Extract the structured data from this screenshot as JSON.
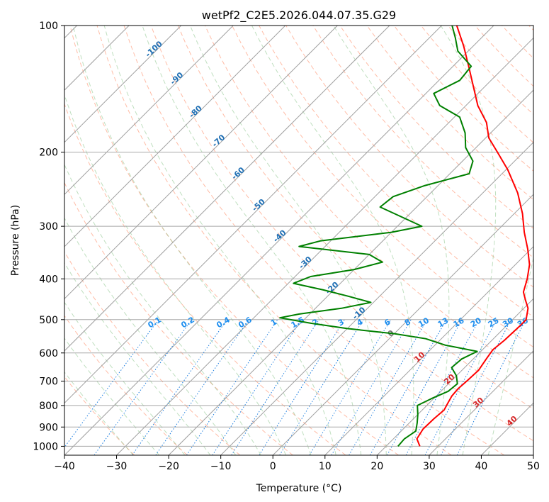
{
  "chart_data": {
    "type": "line",
    "title": "wetPf2_C2E5.2026.044.07.35.G29",
    "xlabel": "Temperature (°C)",
    "ylabel": "Pressure (hPa)",
    "xlim": [
      -40,
      50
    ],
    "ylim": [
      1050,
      100
    ],
    "y_scale": "log",
    "x_ticks": [
      -40,
      -30,
      -20,
      -10,
      0,
      10,
      20,
      30,
      40,
      50
    ],
    "x_tick_labels": [
      "−40",
      "−30",
      "−20",
      "−10",
      "0",
      "10",
      "20",
      "30",
      "40",
      "50"
    ],
    "y_ticks": [
      100,
      200,
      300,
      400,
      500,
      600,
      700,
      800,
      900,
      1000
    ],
    "y_tick_labels": [
      "100",
      "200",
      "300",
      "400",
      "500",
      "600",
      "700",
      "800",
      "900",
      "1000"
    ],
    "isotherm_labels": [
      {
        "t": -100,
        "text": "-100"
      },
      {
        "t": -90,
        "text": "-90"
      },
      {
        "t": -80,
        "text": "-80"
      },
      {
        "t": -70,
        "text": "-70"
      },
      {
        "t": -60,
        "text": "-60"
      },
      {
        "t": -50,
        "text": "-50"
      },
      {
        "t": -40,
        "text": "-40"
      },
      {
        "t": -30,
        "text": "-30"
      },
      {
        "t": -20,
        "text": "-20"
      },
      {
        "t": -10,
        "text": "-10"
      },
      {
        "t": 0,
        "text": "0"
      },
      {
        "t": 10,
        "text": "10"
      },
      {
        "t": 20,
        "text": "20"
      },
      {
        "t": 30,
        "text": "30"
      },
      {
        "t": 40,
        "text": "40"
      }
    ],
    "mixing_ratio_labels": [
      "0.1",
      "0.2",
      "0.4",
      "0.6",
      "1",
      "1.5",
      "2",
      "3",
      "4",
      "6",
      "8",
      "10",
      "13",
      "16",
      "20",
      "25",
      "30",
      "36"
    ],
    "series": [
      {
        "name": "Temperature",
        "color": "#ff0000",
        "points": [
          {
            "p": 1000,
            "t": 26.5
          },
          {
            "p": 960,
            "t": 24.5
          },
          {
            "p": 910,
            "t": 23.8
          },
          {
            "p": 860,
            "t": 23.9
          },
          {
            "p": 820,
            "t": 24.2
          },
          {
            "p": 790,
            "t": 23.6
          },
          {
            "p": 760,
            "t": 23.0
          },
          {
            "p": 730,
            "t": 22.8
          },
          {
            "p": 700,
            "t": 23.0
          },
          {
            "p": 660,
            "t": 23.2
          },
          {
            "p": 620,
            "t": 22.5
          },
          {
            "p": 590,
            "t": 22.0
          },
          {
            "p": 560,
            "t": 22.4
          },
          {
            "p": 540,
            "t": 22.5
          },
          {
            "p": 520,
            "t": 22.6
          },
          {
            "p": 500,
            "t": 22.6
          },
          {
            "p": 470,
            "t": 20.8
          },
          {
            "p": 450,
            "t": 18.8
          },
          {
            "p": 430,
            "t": 16.8
          },
          {
            "p": 400,
            "t": 15.0
          },
          {
            "p": 370,
            "t": 12.7
          },
          {
            "p": 340,
            "t": 9.4
          },
          {
            "p": 310,
            "t": 5.5
          },
          {
            "p": 280,
            "t": 1.6
          },
          {
            "p": 250,
            "t": -3.3
          },
          {
            "p": 220,
            "t": -9.7
          },
          {
            "p": 200,
            "t": -15.0
          },
          {
            "p": 185,
            "t": -19.4
          },
          {
            "p": 170,
            "t": -22.8
          },
          {
            "p": 155,
            "t": -27.7
          },
          {
            "p": 140,
            "t": -32.1
          },
          {
            "p": 125,
            "t": -37.0
          },
          {
            "p": 112,
            "t": -41.8
          },
          {
            "p": 100,
            "t": -47.1
          }
        ]
      },
      {
        "name": "Dewpoint",
        "color": "#008000",
        "points": [
          {
            "p": 1000,
            "t": 22.3
          },
          {
            "p": 960,
            "t": 22.1
          },
          {
            "p": 920,
            "t": 22.8
          },
          {
            "p": 880,
            "t": 21.5
          },
          {
            "p": 840,
            "t": 20.0
          },
          {
            "p": 800,
            "t": 18.2
          },
          {
            "p": 770,
            "t": 19.6
          },
          {
            "p": 740,
            "t": 21.4
          },
          {
            "p": 710,
            "t": 21.7
          },
          {
            "p": 680,
            "t": 20.0
          },
          {
            "p": 650,
            "t": 17.5
          },
          {
            "p": 620,
            "t": 17.8
          },
          {
            "p": 595,
            "t": 19.3
          },
          {
            "p": 575,
            "t": 12.0
          },
          {
            "p": 555,
            "t": 7.0
          },
          {
            "p": 540,
            "t": 0.0
          },
          {
            "p": 525,
            "t": -10.0
          },
          {
            "p": 510,
            "t": -18.0
          },
          {
            "p": 495,
            "t": -25.0
          },
          {
            "p": 485,
            "t": -22.0
          },
          {
            "p": 470,
            "t": -15.0
          },
          {
            "p": 455,
            "t": -10.5
          },
          {
            "p": 440,
            "t": -16.0
          },
          {
            "p": 425,
            "t": -22.0
          },
          {
            "p": 410,
            "t": -29.0
          },
          {
            "p": 395,
            "t": -27.0
          },
          {
            "p": 380,
            "t": -20.0
          },
          {
            "p": 365,
            "t": -16.0
          },
          {
            "p": 350,
            "t": -20.0
          },
          {
            "p": 335,
            "t": -35.0
          },
          {
            "p": 325,
            "t": -32.0
          },
          {
            "p": 310,
            "t": -20.0
          },
          {
            "p": 300,
            "t": -15.3
          },
          {
            "p": 285,
            "t": -21.0
          },
          {
            "p": 270,
            "t": -27.0
          },
          {
            "p": 255,
            "t": -26.5
          },
          {
            "p": 240,
            "t": -22.5
          },
          {
            "p": 225,
            "t": -16.3
          },
          {
            "p": 210,
            "t": -18.0
          },
          {
            "p": 195,
            "t": -22.0
          },
          {
            "p": 180,
            "t": -24.9
          },
          {
            "p": 165,
            "t": -29.0
          },
          {
            "p": 155,
            "t": -35.0
          },
          {
            "p": 145,
            "t": -38.5
          },
          {
            "p": 135,
            "t": -36.0
          },
          {
            "p": 125,
            "t": -36.5
          },
          {
            "p": 115,
            "t": -42.0
          },
          {
            "p": 107,
            "t": -45.0
          },
          {
            "p": 100,
            "t": -48.0
          }
        ]
      }
    ]
  }
}
